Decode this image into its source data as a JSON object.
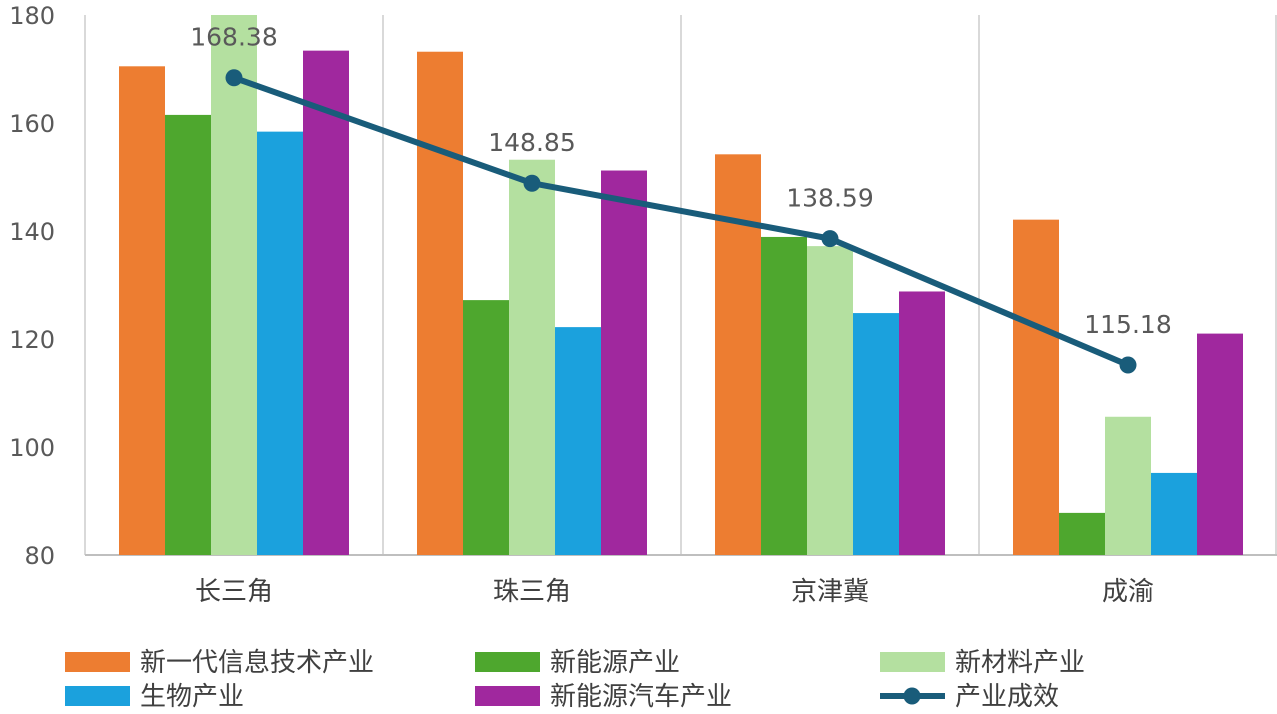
{
  "chart_data": {
    "type": "bar",
    "categories": [
      "长三角",
      "珠三角",
      "京津冀",
      "成渝"
    ],
    "ylim": [
      80,
      180
    ],
    "yticks": [
      80,
      100,
      120,
      140,
      160,
      180
    ],
    "series": [
      {
        "name": "新一代信息技术产业",
        "type": "bar",
        "color": "#ED7D31",
        "values": [
          170.5,
          173.2,
          154.2,
          142.1
        ]
      },
      {
        "name": "新能源产业",
        "type": "bar",
        "color": "#4EA72E",
        "values": [
          161.5,
          127.2,
          138.9,
          87.8
        ]
      },
      {
        "name": "新材料产业",
        "type": "bar",
        "color": "#B4E0A0",
        "values": [
          180.0,
          153.2,
          137.2,
          105.6
        ]
      },
      {
        "name": "生物产业",
        "type": "bar",
        "color": "#1BA1DD",
        "values": [
          158.4,
          122.2,
          124.8,
          95.2
        ]
      },
      {
        "name": "新能源汽车产业",
        "type": "bar",
        "color": "#A0289E",
        "values": [
          173.4,
          151.2,
          128.8,
          121.0
        ]
      },
      {
        "name": "产业成效",
        "type": "line",
        "color": "#195C7A",
        "values": [
          168.38,
          148.85,
          138.59,
          115.18
        ],
        "labels": [
          "168.38",
          "148.85",
          "138.59",
          "115.18"
        ]
      }
    ],
    "legend_position": "bottom",
    "grid": "vertical-category-separators"
  }
}
